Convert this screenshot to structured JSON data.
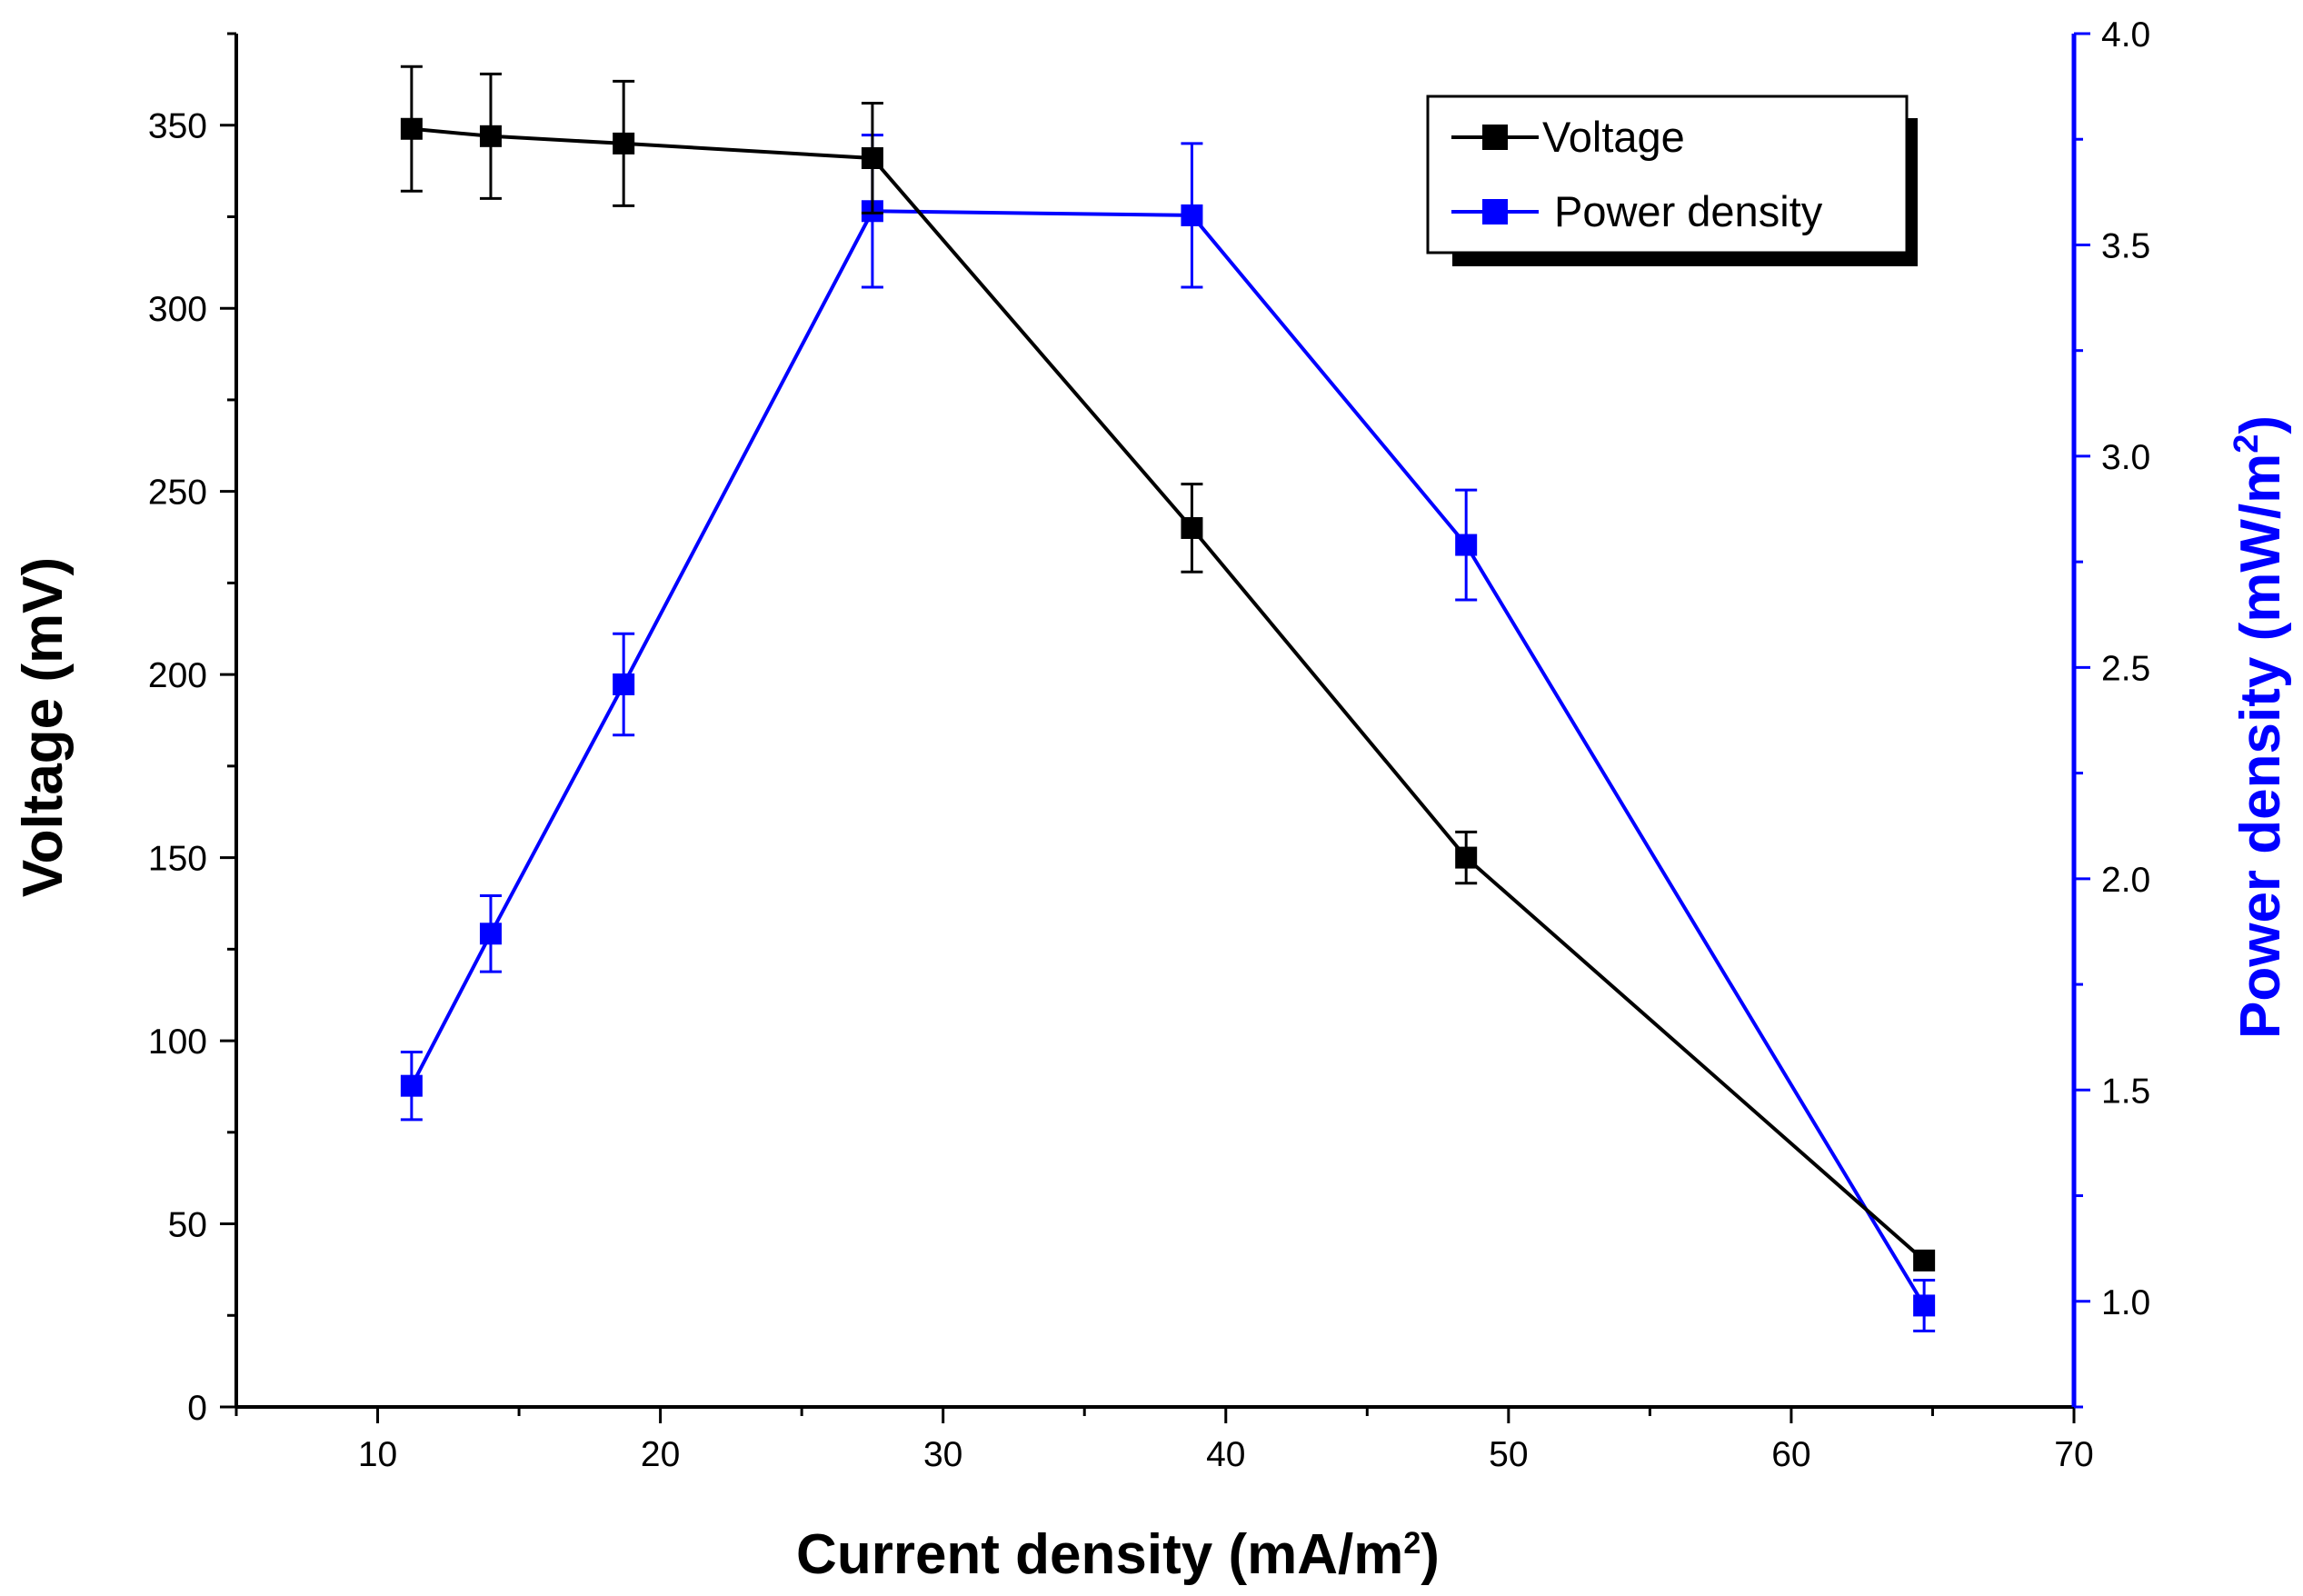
{
  "chart_data": {
    "type": "line",
    "xlabel": "Current density (mA/m",
    "xlabel_sup": "2",
    "xlabel_end": ")",
    "ylabel": "Voltage (mV)",
    "y2label": "Power density (mW/m",
    "y2label_sup": "2",
    "y2label_end": ")",
    "xlim": [
      5,
      70
    ],
    "ylim": [
      0,
      375
    ],
    "y2lim": [
      0.75,
      4.0
    ],
    "xticks": [
      10,
      20,
      30,
      40,
      50,
      60,
      70
    ],
    "yticks": [
      0,
      50,
      100,
      150,
      200,
      250,
      300,
      350
    ],
    "y2ticks": [
      1.0,
      1.5,
      2.0,
      2.5,
      3.0,
      3.5,
      4.0
    ],
    "y2tick_labels": [
      "1.0",
      "1.5",
      "2.0",
      "2.5",
      "3.0",
      "3.5",
      "4.0"
    ],
    "legend_position": "top-right",
    "series": [
      {
        "name": "Voltage",
        "axis": "left",
        "color": "#000000",
        "x": [
          11.2,
          14.0,
          18.7,
          27.5,
          38.8,
          48.5,
          64.7
        ],
        "y": [
          349,
          347,
          345,
          341,
          240,
          150,
          40
        ],
        "err": [
          17,
          17,
          17,
          15,
          12,
          7,
          0
        ]
      },
      {
        "name": "Power density",
        "axis": "right",
        "color": "#0000ff",
        "x": [
          11.2,
          14.0,
          18.7,
          27.5,
          38.8,
          48.5,
          64.7
        ],
        "y": [
          1.51,
          1.87,
          2.46,
          3.58,
          3.57,
          2.79,
          0.99
        ],
        "err": [
          0.08,
          0.09,
          0.12,
          0.18,
          0.17,
          0.13,
          0.06
        ]
      }
    ]
  }
}
